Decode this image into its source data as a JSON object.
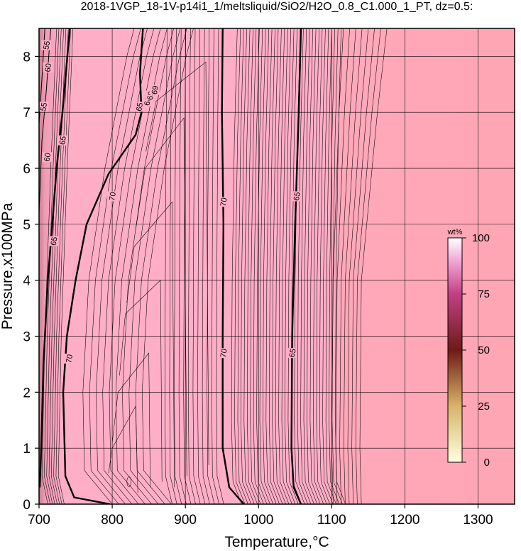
{
  "chart_data": {
    "type": "heatmap",
    "subtype": "contour",
    "title": "2018-1VGP_18-1V-p14i1_1/meltsliquid/SiO2/H2O_0.8_C1.000_1_PT, dz=0.5:",
    "xlabel": "Temperature,°C",
    "ylabel": "Pressure,x100MPa",
    "xlim": [
      700,
      1350
    ],
    "ylim": [
      0,
      8.5
    ],
    "xticks": [
      700,
      800,
      900,
      1000,
      1100,
      1200,
      1300
    ],
    "yticks": [
      0,
      1,
      2,
      3,
      4,
      5,
      6,
      7,
      8
    ],
    "grid": true,
    "colors": {
      "field_main": "#ffaec8",
      "field_high_t": "#ffa6b4",
      "field_low_t": "#c77c8c",
      "grid": "#000000",
      "contour": "#000000"
    },
    "colorbar": {
      "title": "wt%",
      "min": 0,
      "max": 100,
      "ticks": [
        0,
        25,
        50,
        75,
        100
      ],
      "colors": [
        "#ffffe0",
        "#d8b468",
        "#6e1a18",
        "#c23f86",
        "#f2a9d8",
        "#ffffff"
      ]
    },
    "contours": [
      {
        "level": 70,
        "major": true,
        "points": [
          [
            797,
            0
          ],
          [
            748,
            0.12
          ],
          [
            736,
            0.5
          ],
          [
            733,
            2.0
          ],
          [
            738,
            3.0
          ],
          [
            750,
            4.0
          ],
          [
            765,
            5.0
          ],
          [
            795,
            5.9
          ],
          [
            832,
            6.6
          ],
          [
            840,
            7.0
          ],
          [
            838,
            7.7
          ],
          [
            842,
            8.5
          ]
        ]
      },
      {
        "level": 70,
        "major": true,
        "points": [
          [
            980,
            0
          ],
          [
            960,
            0.3
          ],
          [
            951,
            1.0
          ],
          [
            951,
            3.0
          ],
          [
            952,
            5.0
          ],
          [
            950,
            7.0
          ],
          [
            951,
            8.5
          ]
        ]
      },
      {
        "level": 65,
        "major": true,
        "points": [
          [
            1058,
            0
          ],
          [
            1048,
            0.3
          ],
          [
            1045,
            1.0
          ],
          [
            1046,
            3.0
          ],
          [
            1050,
            5.0
          ],
          [
            1055,
            7.0
          ],
          [
            1058,
            8.5
          ]
        ]
      },
      {
        "level": 65,
        "major": true,
        "points": [
          [
            701,
            0.3
          ],
          [
            703,
            1.0
          ],
          [
            706,
            2.5
          ],
          [
            712,
            4.0
          ],
          [
            718,
            5.0
          ],
          [
            724,
            6.0
          ],
          [
            732,
            7.0
          ],
          [
            742,
            8.5
          ]
        ]
      },
      {
        "level": 60,
        "major": false,
        "points": [
          [
            700,
            5.2
          ],
          [
            704,
            6.5
          ],
          [
            710,
            7.4
          ],
          [
            716,
            8.5
          ]
        ]
      },
      {
        "level": 55,
        "major": false,
        "points": [
          [
            700,
            6.8
          ],
          [
            704,
            7.6
          ],
          [
            708,
            8.5
          ]
        ]
      }
    ],
    "contour_labels": [
      {
        "text": "70",
        "x": 741,
        "y": 2.6
      },
      {
        "text": "70",
        "x": 800,
        "y": 5.5
      },
      {
        "text": "70",
        "x": 952,
        "y": 2.7
      },
      {
        "text": "70",
        "x": 952,
        "y": 5.4
      },
      {
        "text": "65",
        "x": 1046,
        "y": 2.7
      },
      {
        "text": "65",
        "x": 1052,
        "y": 5.5
      },
      {
        "text": "65",
        "x": 720,
        "y": 4.7
      },
      {
        "text": "65",
        "x": 732,
        "y": 6.5
      },
      {
        "text": "60",
        "x": 712,
        "y": 7.8
      },
      {
        "text": "60",
        "x": 711,
        "y": 6.2
      },
      {
        "text": "55",
        "x": 710,
        "y": 8.2
      },
      {
        "text": "55",
        "x": 706,
        "y": 7.1
      },
      {
        "text": "50",
        "x": 705,
        "y": 8.6
      },
      {
        "text": "65",
        "x": 837,
        "y": 7.1
      },
      {
        "text": "68",
        "x": 848,
        "y": 7.2
      },
      {
        "text": "69",
        "x": 852,
        "y": 7.3
      },
      {
        "text": "69",
        "x": 858,
        "y": 7.4
      }
    ]
  }
}
